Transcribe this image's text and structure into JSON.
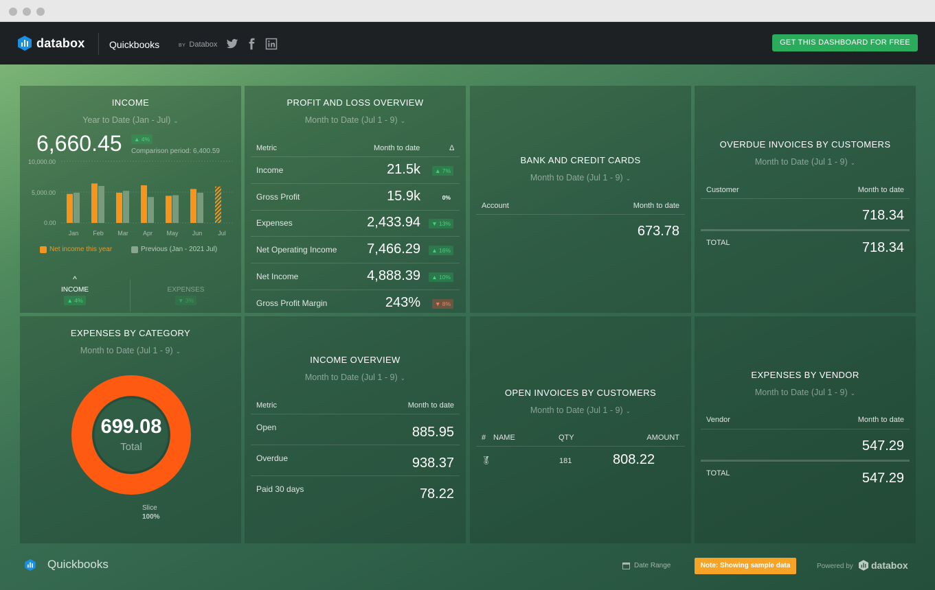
{
  "header": {
    "brand": "databox",
    "title": "Quickbooks",
    "by_prefix": "BY",
    "by_name": "Databox",
    "cta": "GET THIS DASHBOARD FOR FREE"
  },
  "income": {
    "title": "INCOME",
    "date": "Year to Date (Jan - Jul)",
    "value": "6,660.45",
    "badge": "▲ 4%",
    "comparison": "Comparison period: 6,400.59",
    "y_labels": [
      "10,000.00",
      "5,000.00",
      "0.00"
    ],
    "legend_current": "Net income this year",
    "legend_previous": "Previous (Jan - 2021 Jul)",
    "tab_income": "INCOME",
    "tab_income_badge": "▲ 4%",
    "tab_expenses": "EXPENSES",
    "tab_expenses_badge": "▼ 3%"
  },
  "chart_data": {
    "type": "bar",
    "title": "INCOME",
    "categories": [
      "Jan",
      "Feb",
      "Mar",
      "Apr",
      "May",
      "Jun",
      "Jul"
    ],
    "ylim": [
      0,
      10000
    ],
    "series": [
      {
        "name": "Net income this year",
        "values": [
          4700,
          6400,
          4900,
          6100,
          4400,
          5500,
          5900
        ]
      },
      {
        "name": "Previous (Jan - 2021 Jul)",
        "values": [
          4900,
          6000,
          5200,
          4200,
          4500,
          4900,
          null
        ]
      }
    ],
    "legend": "bottom"
  },
  "pnl": {
    "title": "PROFIT AND LOSS OVERVIEW",
    "date": "Month to Date (Jul 1 - 9)",
    "col_metric": "Metric",
    "col_value": "Month to date",
    "col_delta": "Δ",
    "rows": [
      {
        "label": "Income",
        "value": "21.5k",
        "badge": "▲ 7%",
        "trend": "up"
      },
      {
        "label": "Gross Profit",
        "value": "15.9k",
        "badge": "0%",
        "trend": "flat"
      },
      {
        "label": "Expenses",
        "value": "2,433.94",
        "badge": "▼ 13%",
        "trend": "up"
      },
      {
        "label": "Net Operating Income",
        "value": "7,466.29",
        "badge": "▲ 16%",
        "trend": "up"
      },
      {
        "label": "Net Income",
        "value": "4,888.39",
        "badge": "▲ 10%",
        "trend": "up"
      },
      {
        "label": "Gross Profit Margin",
        "value": "243%",
        "badge": "▼ 8%",
        "trend": "down"
      }
    ]
  },
  "bank": {
    "title": "BANK AND CREDIT CARDS",
    "date": "Month to Date (Jul 1 - 9)",
    "col_account": "Account",
    "col_value": "Month to date",
    "value": "673.78"
  },
  "overdue": {
    "title": "OVERDUE INVOICES BY CUSTOMERS",
    "date": "Month to Date (Jul 1 - 9)",
    "col_customer": "Customer",
    "col_value": "Month to date",
    "value": "718.34",
    "total_label": "TOTAL",
    "total_value": "718.34"
  },
  "expcat": {
    "title": "EXPENSES BY CATEGORY",
    "date": "Month to Date (Jul 1 - 9)",
    "value": "699.08",
    "total_label": "Total",
    "slice_label": "Slice",
    "slice_pct": "100%"
  },
  "incov": {
    "title": "INCOME OVERVIEW",
    "date": "Month to Date (Jul 1 - 9)",
    "col_metric": "Metric",
    "col_value": "Month to date",
    "rows": [
      {
        "label": "Open",
        "value": "885.95"
      },
      {
        "label": "Overdue",
        "value": "938.37"
      },
      {
        "label": "Paid 30 days",
        "value": "78.22"
      }
    ]
  },
  "openinv": {
    "title": "OPEN INVOICES BY CUSTOMERS",
    "date": "Month to Date (Jul 1 - 9)",
    "col_num": "#",
    "col_name": "NAME",
    "col_qty": "QTY",
    "col_amount": "AMOUNT",
    "qty": "181",
    "amount": "808.22"
  },
  "vendor": {
    "title": "EXPENSES BY VENDOR",
    "date": "Month to Date (Jul 1 - 9)",
    "col_vendor": "Vendor",
    "col_value": "Month to date",
    "value": "547.29",
    "total_label": "TOTAL",
    "total_value": "547.29"
  },
  "footer": {
    "title": "Quickbooks",
    "date_range": "Date Range",
    "note": "Note: Showing sample data",
    "powered": "Powered by",
    "brand": "databox"
  },
  "colors": {
    "accent": "#2bac5d",
    "current": "#f7941d",
    "previous": "#7a9a7e",
    "donut": "#ff5a12",
    "up": "#40d27b",
    "down": "#ff7a5c"
  }
}
